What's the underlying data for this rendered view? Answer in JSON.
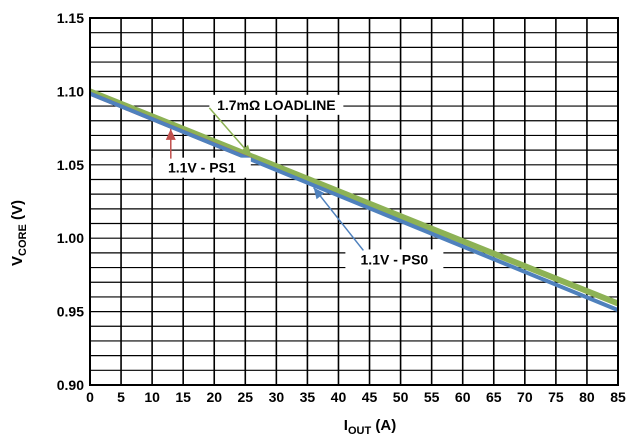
{
  "chart_data": {
    "type": "line",
    "xlim": [
      0,
      85
    ],
    "ylim": [
      0.9,
      1.15
    ],
    "x_ticks": [
      "0",
      "5",
      "10",
      "15",
      "20",
      "25",
      "30",
      "35",
      "40",
      "45",
      "50",
      "55",
      "60",
      "65",
      "70",
      "75",
      "80",
      "85"
    ],
    "y_ticks": [
      "0.90",
      "0.95",
      "1.00",
      "1.05",
      "1.10",
      "1.15"
    ],
    "ylabel": {
      "main": "V",
      "sub": "CORE",
      "unit": " (V)"
    },
    "xlabel": {
      "main": "I",
      "sub": "OUT",
      "unit": " (A)"
    },
    "grid": true,
    "series": [
      {
        "name": "1.7mΩ LOADLINE",
        "color": "#8db255",
        "x": [
          0,
          85
        ],
        "y": [
          1.1,
          0.9555
        ]
      },
      {
        "name": "1.1V - PS1",
        "color": "#c0504d",
        "x": [
          0,
          26
        ],
        "y": [
          1.0985,
          1.0535
        ]
      },
      {
        "name": "1.1V - PS0",
        "color": "#4f81bd",
        "x": [
          0,
          85
        ],
        "y": [
          1.0985,
          0.951
        ]
      }
    ],
    "annotations": [
      {
        "text": "1.7mΩ LOADLINE",
        "series": 0,
        "x": 30,
        "y": 1.0888,
        "point_x": 26,
        "point_y": 1.0558
      },
      {
        "text": "1.1V - PS1",
        "series": 1,
        "x": 18,
        "y": 1.046,
        "point_x": 13,
        "point_y": 1.0745
      },
      {
        "text": "1.1V - PS0",
        "series": 2,
        "x": 49,
        "y": 0.9835,
        "point_x": 36,
        "point_y": 1.0345
      }
    ]
  }
}
